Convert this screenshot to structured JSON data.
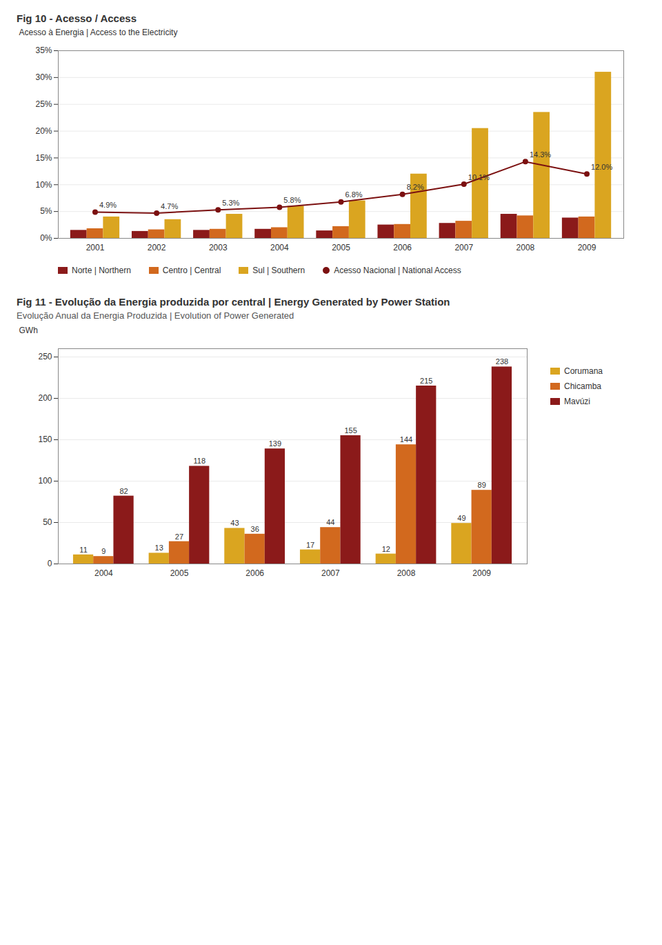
{
  "chart_data": [
    {
      "type": "bar",
      "title": "Fig 10 - Acesso / Access",
      "ylabel": "Acesso à Energia | Access to the Electricity",
      "categories": [
        "2001",
        "2002",
        "2003",
        "2004",
        "2005",
        "2006",
        "2007",
        "2008",
        "2009"
      ],
      "series": [
        {
          "name": "Norte | Northern",
          "color": "#8B1A1A",
          "values": [
            1.5,
            1.3,
            1.5,
            1.7,
            1.4,
            2.5,
            2.8,
            4.5,
            3.8
          ]
        },
        {
          "name": "Centro | Central",
          "color": "#D2691E",
          "values": [
            1.8,
            1.6,
            1.7,
            2.0,
            2.2,
            2.6,
            3.2,
            4.2,
            4.0
          ]
        },
        {
          "name": "Sul | Southern",
          "color": "#DAA520",
          "values": [
            4.0,
            3.5,
            4.5,
            6.0,
            7.0,
            12.0,
            20.5,
            23.5,
            31.0
          ]
        },
        {
          "name": "Acesso Nacional | National Access",
          "type": "line",
          "marker": "circle",
          "color": "#7B1010",
          "values": [
            4.9,
            4.7,
            5.3,
            5.8,
            6.8,
            8.2,
            10.1,
            14.3,
            12.0
          ],
          "value_labels": [
            "4.9%",
            "4.7%",
            "5.3%",
            "5.8%",
            "6.8%",
            "8.2%",
            "10.1%",
            "14.3%",
            "12.0%"
          ]
        }
      ],
      "ylim": [
        0,
        35
      ],
      "yticks": [
        {
          "value": 0,
          "label": "0%"
        },
        {
          "value": 5,
          "label": "5%"
        },
        {
          "value": 10,
          "label": "10%"
        },
        {
          "value": 15,
          "label": "15%"
        },
        {
          "value": 20,
          "label": "20%"
        },
        {
          "value": 25,
          "label": "25%"
        },
        {
          "value": 30,
          "label": "30%"
        },
        {
          "value": 35,
          "label": "35%"
        }
      ],
      "grid": true,
      "legend": "bottom"
    },
    {
      "type": "bar",
      "title": "Fig 11 - Evolução da Energia produzida por central | Energy Generated by  Power Station",
      "subtitle": "Evolução Anual da Energia Produzida | Evolution of Power Generated",
      "ylabel": "GWh",
      "categories": [
        "2004",
        "2005",
        "2006",
        "2007",
        "2008",
        "2009"
      ],
      "series": [
        {
          "name": "Corumana",
          "color": "#DAA520",
          "values": [
            11,
            13,
            43,
            17,
            12,
            49
          ]
        },
        {
          "name": "Chicamba",
          "color": "#D2691E",
          "values": [
            9,
            27,
            36,
            44,
            144,
            89
          ]
        },
        {
          "name": "Mavúzi",
          "color": "#8B1A1A",
          "values": [
            82,
            118,
            139,
            155,
            215,
            238
          ]
        }
      ],
      "ylim": [
        0,
        260
      ],
      "yticks": [
        0,
        50,
        100,
        150,
        200,
        250
      ],
      "grid": true,
      "legend": "right",
      "data_labels": true
    }
  ]
}
